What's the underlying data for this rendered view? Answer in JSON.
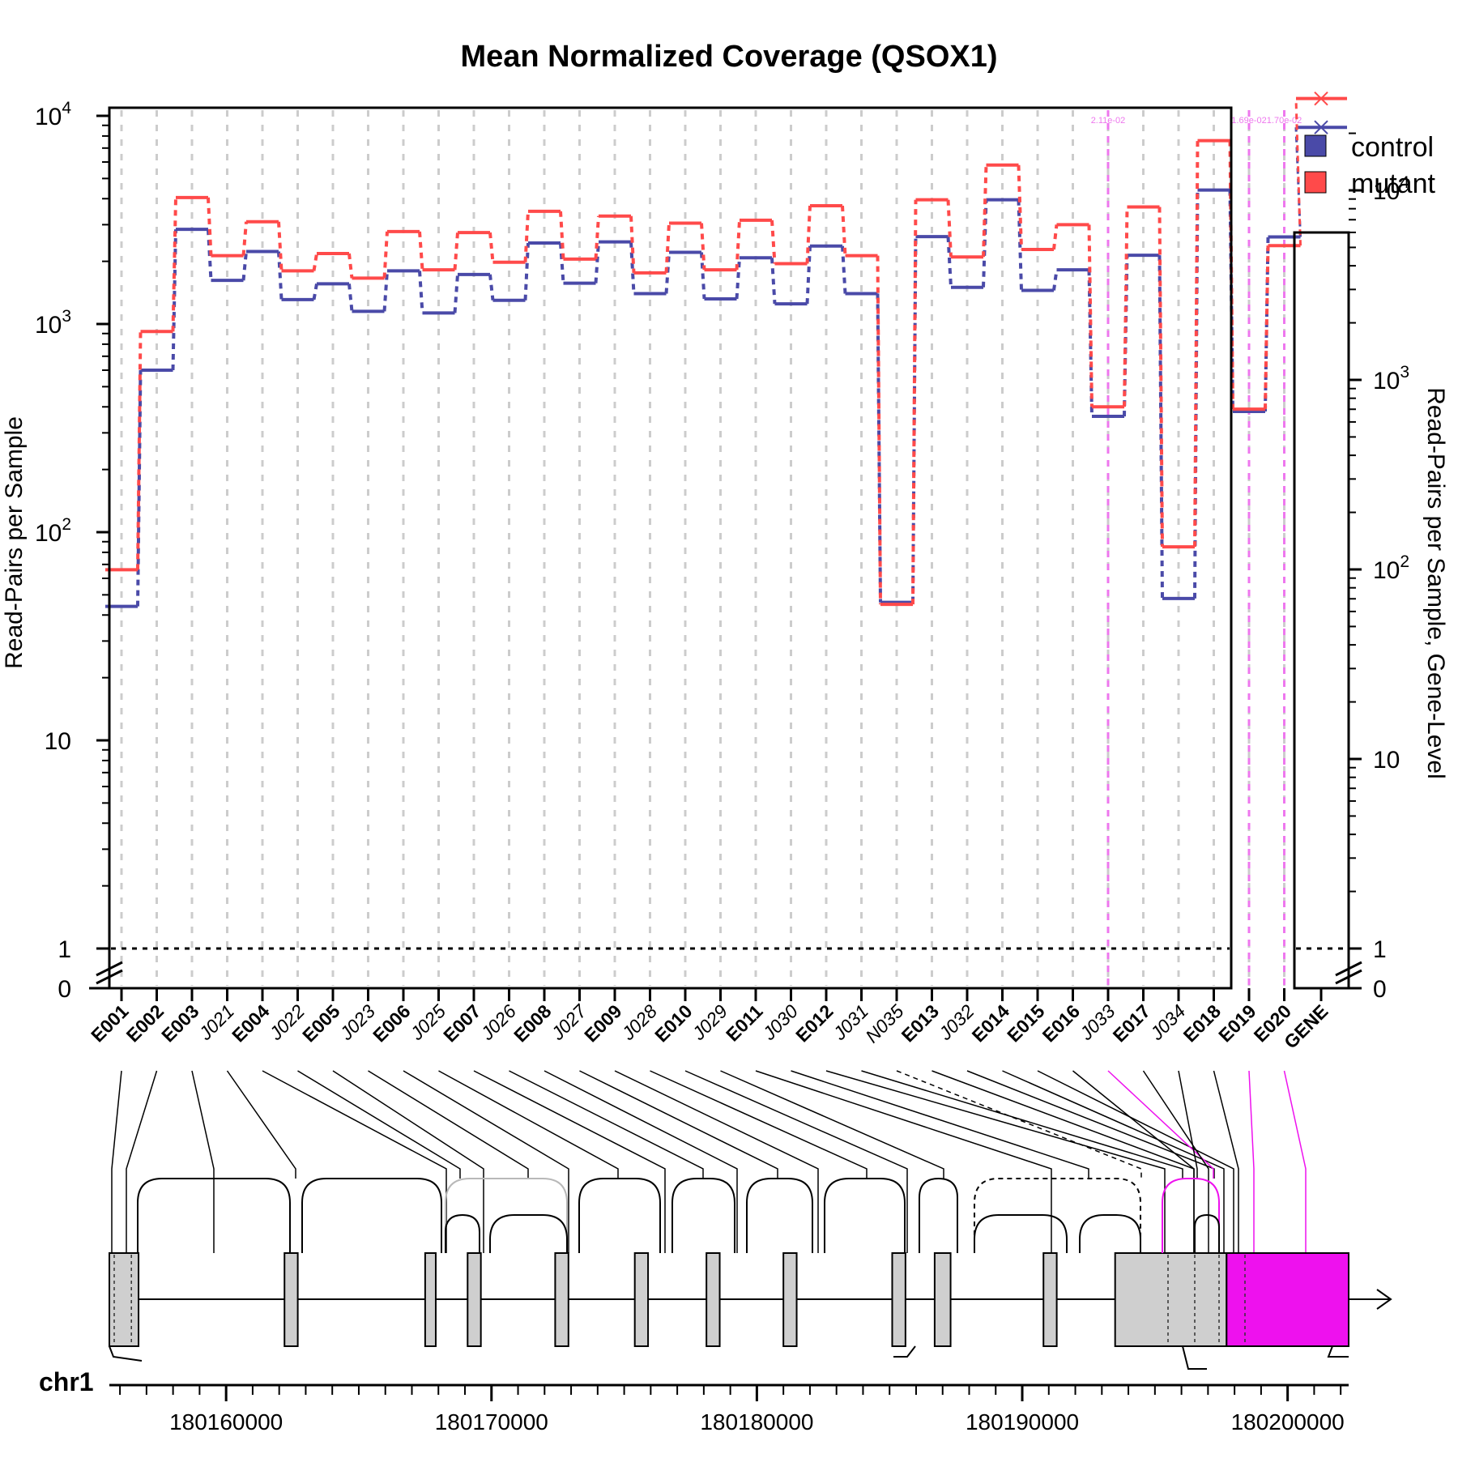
{
  "colors": {
    "control": "#4a4aa8",
    "mutant": "#ff4a4a",
    "grid": "#cccccc",
    "highlight": "#ee77ee",
    "magenta": "#ee11ee",
    "exon_fill": "#cfcfcf",
    "gray_junction": "#b8b8b8"
  },
  "chart_data": [
    {
      "type": "line",
      "title": "Mean Normalized Coverage (QSOX1)",
      "ylabel": "Read-Pairs per Sample",
      "y_scale": "log",
      "ylim": [
        0,
        10000
      ],
      "y_ticks": [
        {
          "value": 10000,
          "base": "10",
          "exp": "4"
        },
        {
          "value": 1000,
          "base": "10",
          "exp": "3"
        },
        {
          "value": 100,
          "base": "10",
          "exp": "2"
        },
        {
          "value": 10,
          "label": "10"
        },
        {
          "value": 1,
          "label": "1"
        },
        {
          "value": 0,
          "label": "0"
        }
      ],
      "reference_line": 1,
      "categories": [
        "E001",
        "E002",
        "E003",
        "J021",
        "E004",
        "J022",
        "E005",
        "J023",
        "E006",
        "J025",
        "E007",
        "J026",
        "E008",
        "J027",
        "E009",
        "J028",
        "E010",
        "J029",
        "E011",
        "J030",
        "E012",
        "J031",
        "N035",
        "E013",
        "J032",
        "E014",
        "E015",
        "E016",
        "J033",
        "E017",
        "J034",
        "E018",
        "E019",
        "E020"
      ],
      "category_styles": [
        "bold",
        "bold",
        "bold",
        "italic",
        "bold",
        "italic",
        "bold",
        "italic",
        "bold",
        "italic",
        "bold",
        "italic",
        "bold",
        "italic",
        "bold",
        "italic",
        "bold",
        "italic",
        "bold",
        "italic",
        "bold",
        "italic",
        "italic",
        "bold",
        "italic",
        "bold",
        "bold",
        "bold",
        "italic",
        "bold",
        "italic",
        "bold",
        "bold",
        "bold"
      ],
      "series": [
        {
          "name": "control",
          "values": [
            44,
            600,
            2850,
            1620,
            2230,
            1310,
            1560,
            1150,
            1800,
            1130,
            1730,
            1300,
            2450,
            1570,
            2480,
            1400,
            2210,
            1320,
            2080,
            1250,
            2370,
            1400,
            46,
            2630,
            1500,
            3950,
            1450,
            1820,
            360,
            2140,
            48,
            4400,
            380,
            2620
          ]
        },
        {
          "name": "mutant",
          "values": [
            66,
            920,
            4050,
            2130,
            3100,
            1800,
            2180,
            1660,
            2780,
            1820,
            2750,
            1980,
            3480,
            2050,
            3300,
            1760,
            3050,
            1820,
            3150,
            1950,
            3700,
            2130,
            45,
            3950,
            2100,
            5800,
            2280,
            3000,
            400,
            3650,
            85,
            7600,
            390,
            2380
          ]
        }
      ],
      "highlight_columns": [
        {
          "category": "J033",
          "label": "2.11e-02"
        },
        {
          "category": "E019",
          "label": "1.69e-02"
        },
        {
          "category": "E020",
          "label": "1.70e-02"
        }
      ],
      "legend": {
        "position": "top-right",
        "entries": [
          "control",
          "mutant"
        ]
      }
    },
    {
      "type": "scatter",
      "ylabel": "Read-Pairs per Sample, Gene-Level",
      "y_scale": "log",
      "ylim": [
        0,
        50000
      ],
      "y_ticks": [
        {
          "value": 10000,
          "base": "10",
          "exp": "4"
        },
        {
          "value": 1000,
          "base": "10",
          "exp": "3"
        },
        {
          "value": 100,
          "base": "10",
          "exp": "2"
        },
        {
          "value": 10,
          "label": "10"
        },
        {
          "value": 1,
          "label": "1"
        },
        {
          "value": 0,
          "label": "0"
        }
      ],
      "categories": [
        "GENE"
      ],
      "series": [
        {
          "name": "control",
          "values": [
            21500
          ]
        },
        {
          "name": "mutant",
          "values": [
            30500
          ]
        }
      ]
    },
    {
      "type": "gene-model",
      "chromosome": "chr1",
      "x_ticks": [
        180160000,
        180170000,
        180180000,
        180190000,
        180200000
      ],
      "xlim": [
        180155600,
        180202300
      ],
      "exons": [
        {
          "start": 180155600,
          "end": 180156700
        },
        {
          "start": 180162200,
          "end": 180162700
        },
        {
          "start": 180167500,
          "end": 180167900
        },
        {
          "start": 180169100,
          "end": 180169600
        },
        {
          "start": 180172400,
          "end": 180172900
        },
        {
          "start": 180175400,
          "end": 180175900
        },
        {
          "start": 180178100,
          "end": 180178600
        },
        {
          "start": 180181000,
          "end": 180181500
        },
        {
          "start": 180185100,
          "end": 180185600
        },
        {
          "start": 180186700,
          "end": 180187300
        },
        {
          "start": 180190800,
          "end": 180191300
        },
        {
          "start": 180193500,
          "end": 180197700
        },
        {
          "start": 180197700,
          "end": 180202300
        }
      ]
    }
  ]
}
